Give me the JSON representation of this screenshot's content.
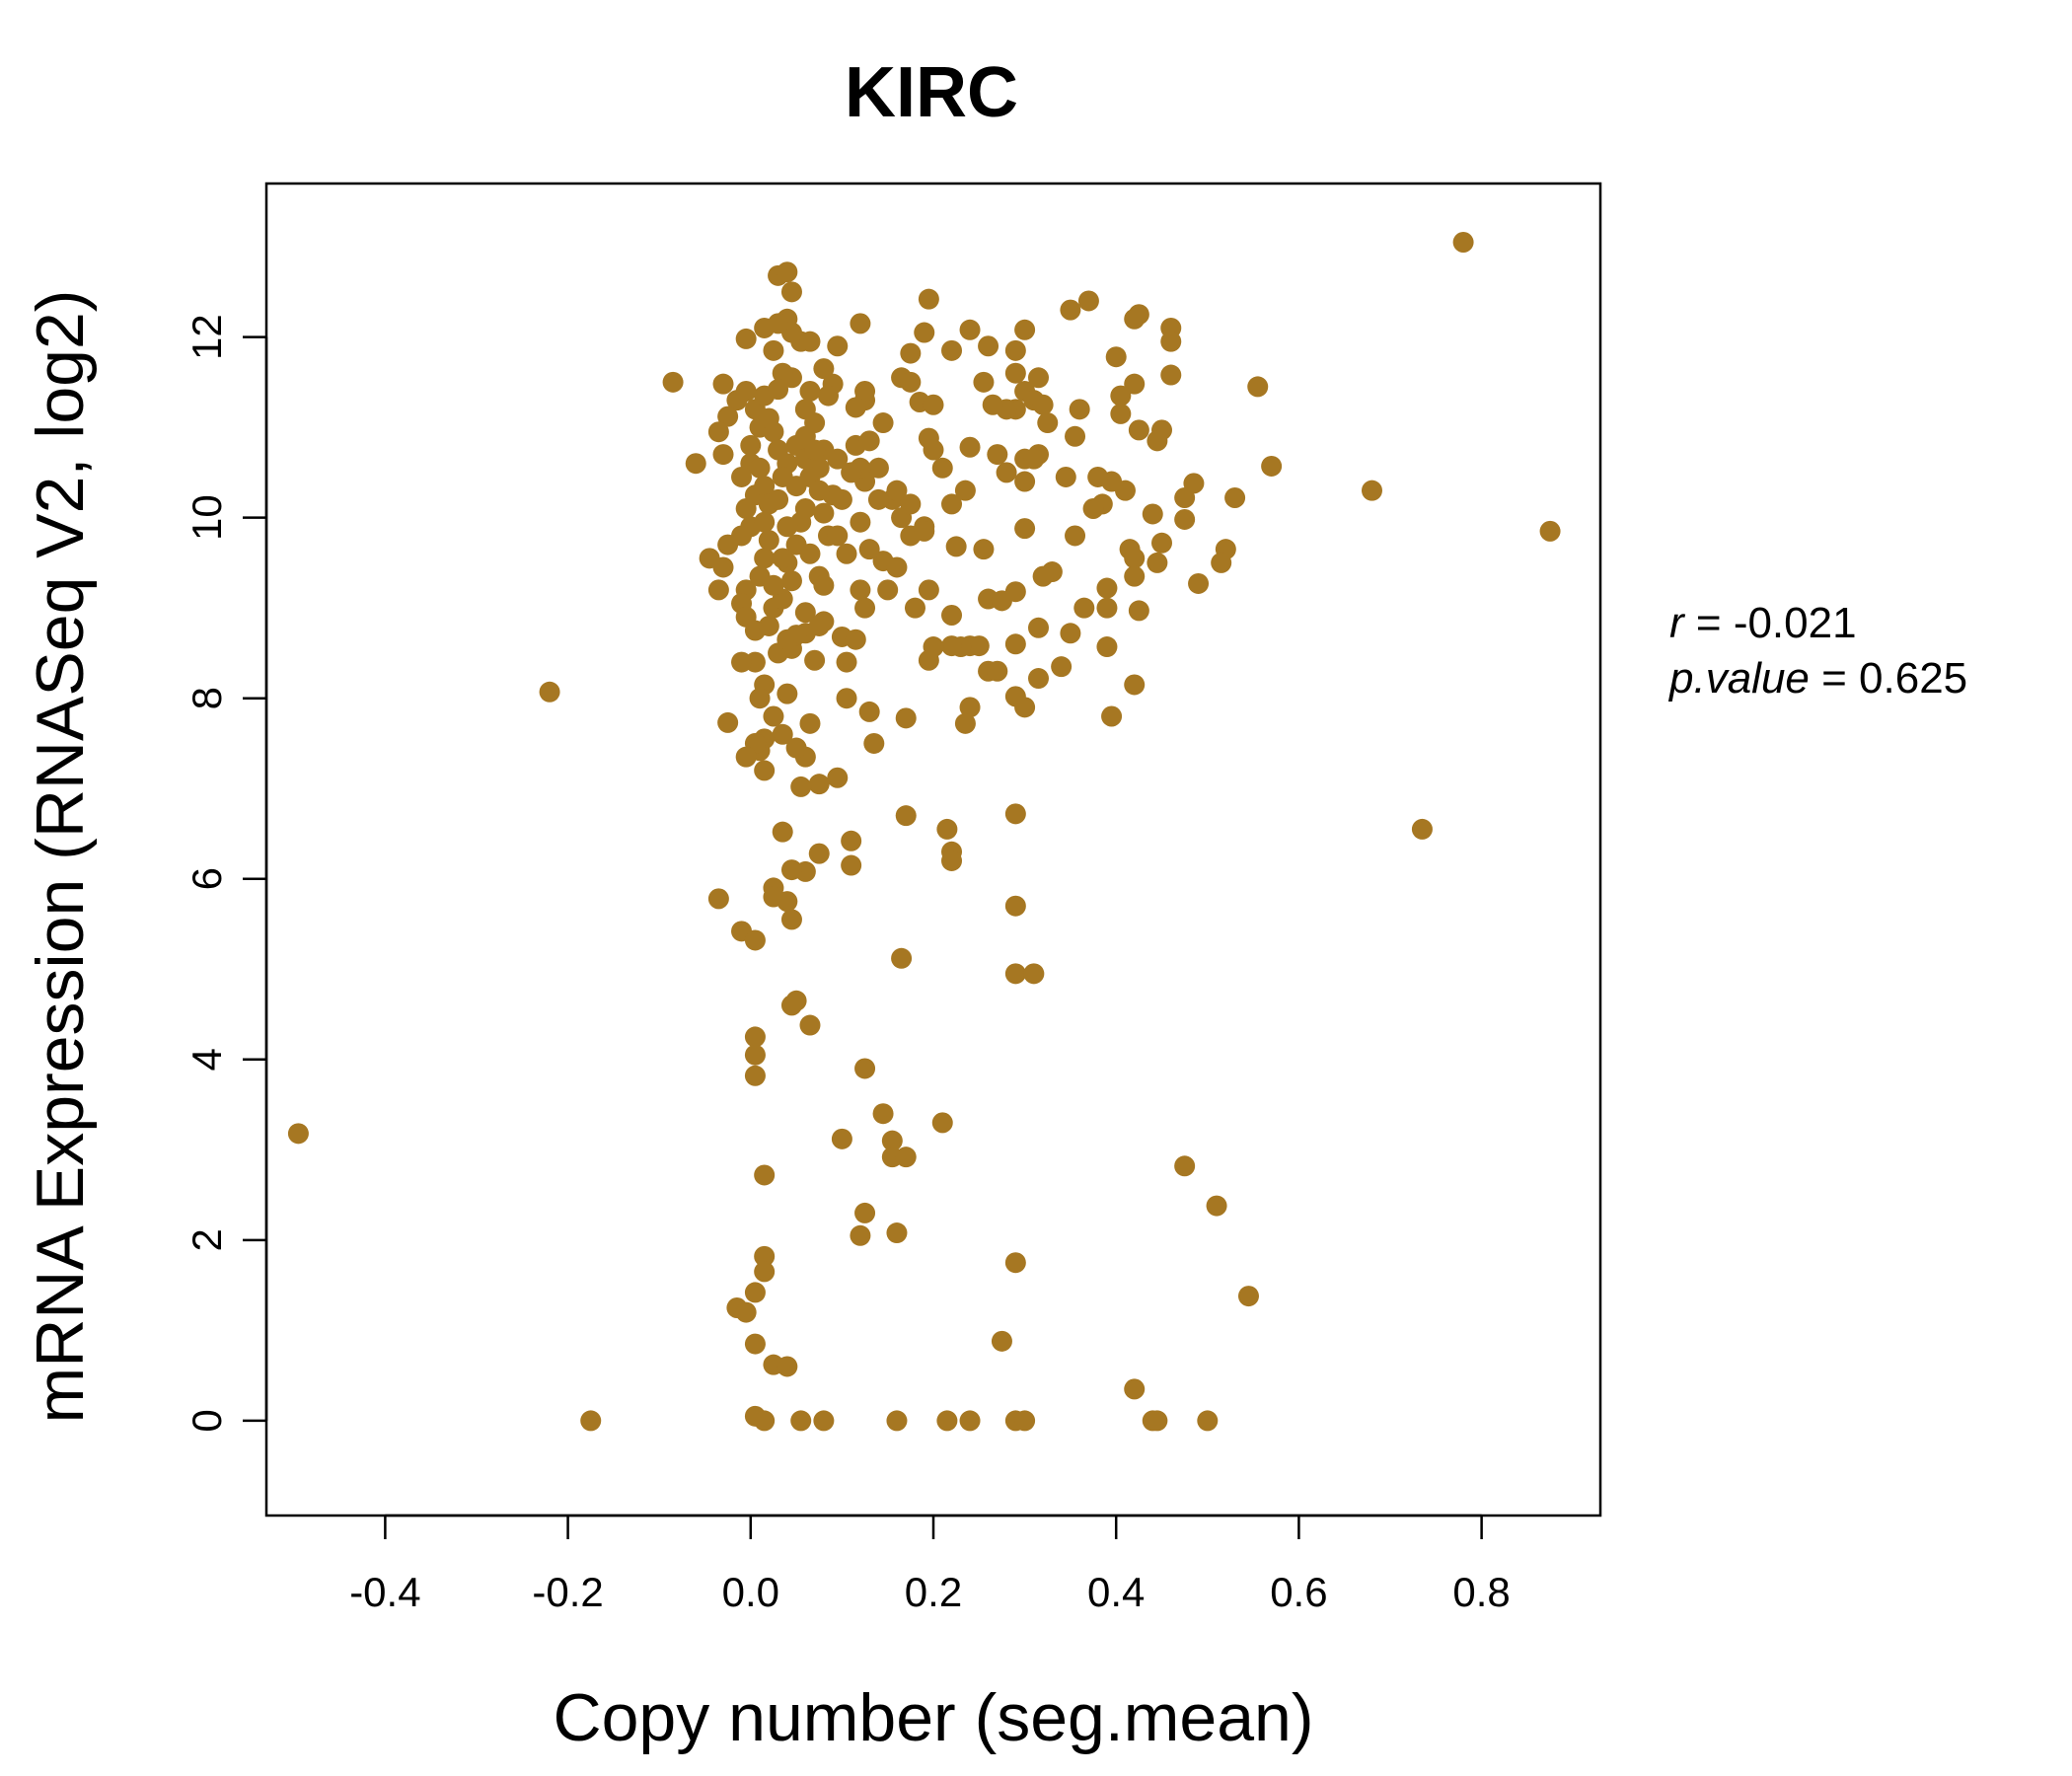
{
  "chart_data": {
    "type": "scatter",
    "title": "KIRC",
    "xlabel": "Copy number (seg.mean)",
    "ylabel": "mRNA Expression (RNASeq V2, log2)",
    "xlim": [
      -0.53,
      0.93
    ],
    "ylim": [
      -1.05,
      13.7
    ],
    "x_ticks": [
      -0.4,
      -0.2,
      0.0,
      0.2,
      0.4,
      0.6,
      0.8
    ],
    "x_tick_labels": [
      "-0.4",
      "-0.2",
      "0.0",
      "0.2",
      "0.4",
      "0.6",
      "0.8"
    ],
    "y_ticks": [
      0,
      2,
      4,
      6,
      8,
      10,
      12
    ],
    "y_tick_labels": [
      "0",
      "2",
      "4",
      "6",
      "8",
      "10",
      "12"
    ],
    "grid": false,
    "point_color": "#a67722",
    "stats": {
      "r_label": "r",
      "r_value": "-0.021",
      "p_label": "p.value",
      "p_value": "0.625"
    },
    "points": [
      [
        0.78,
        13.05
      ],
      [
        0.875,
        9.85
      ],
      [
        0.68,
        10.3
      ],
      [
        0.735,
        6.55
      ],
      [
        -0.495,
        3.18
      ],
      [
        -0.22,
        8.07
      ],
      [
        -0.175,
        0.0
      ],
      [
        0.555,
        11.45
      ],
      [
        0.57,
        10.57
      ],
      [
        0.53,
        10.22
      ],
      [
        0.52,
        9.65
      ],
      [
        0.515,
        9.5
      ],
      [
        0.49,
        9.27
      ],
      [
        0.485,
        10.38
      ],
      [
        0.475,
        10.22
      ],
      [
        0.475,
        9.98
      ],
      [
        0.45,
        9.72
      ],
      [
        0.445,
        9.5
      ],
      [
        0.45,
        10.97
      ],
      [
        0.445,
        10.85
      ],
      [
        0.44,
        10.04
      ],
      [
        0.46,
        12.1
      ],
      [
        0.46,
        11.95
      ],
      [
        0.46,
        11.58
      ],
      [
        0.42,
        12.2
      ],
      [
        0.425,
        12.25
      ],
      [
        0.42,
        11.48
      ],
      [
        0.425,
        10.97
      ],
      [
        0.4,
        11.78
      ],
      [
        0.405,
        11.35
      ],
      [
        0.405,
        11.15
      ],
      [
        0.41,
        10.3
      ],
      [
        0.415,
        9.65
      ],
      [
        0.42,
        9.55
      ],
      [
        0.42,
        9.35
      ],
      [
        0.425,
        8.97
      ],
      [
        0.42,
        8.15
      ],
      [
        0.395,
        7.8
      ],
      [
        0.39,
        8.57
      ],
      [
        0.39,
        9.0
      ],
      [
        0.39,
        9.22
      ],
      [
        0.385,
        10.15
      ],
      [
        0.395,
        10.4
      ],
      [
        0.38,
        10.45
      ],
      [
        0.375,
        10.1
      ],
      [
        0.37,
        12.4
      ],
      [
        0.35,
        12.3
      ],
      [
        0.36,
        11.2
      ],
      [
        0.355,
        10.9
      ],
      [
        0.345,
        10.45
      ],
      [
        0.355,
        9.8
      ],
      [
        0.365,
        9.0
      ],
      [
        0.35,
        8.72
      ],
      [
        0.34,
        8.35
      ],
      [
        0.33,
        9.4
      ],
      [
        0.32,
        9.35
      ],
      [
        0.315,
        8.78
      ],
      [
        0.315,
        8.22
      ],
      [
        0.3,
        7.9
      ],
      [
        0.3,
        12.08
      ],
      [
        0.29,
        11.85
      ],
      [
        0.29,
        11.6
      ],
      [
        0.3,
        11.4
      ],
      [
        0.31,
        11.3
      ],
      [
        0.315,
        11.55
      ],
      [
        0.32,
        11.25
      ],
      [
        0.325,
        11.05
      ],
      [
        0.315,
        10.7
      ],
      [
        0.3,
        10.65
      ],
      [
        0.29,
        11.2
      ],
      [
        0.28,
        11.2
      ],
      [
        0.265,
        11.25
      ],
      [
        0.255,
        11.5
      ],
      [
        0.26,
        11.9
      ],
      [
        0.24,
        12.08
      ],
      [
        0.22,
        11.85
      ],
      [
        0.195,
        12.42
      ],
      [
        0.19,
        12.05
      ],
      [
        0.175,
        11.82
      ],
      [
        0.165,
        11.55
      ],
      [
        0.175,
        11.5
      ],
      [
        0.185,
        11.28
      ],
      [
        0.2,
        11.25
      ],
      [
        0.195,
        10.88
      ],
      [
        0.2,
        10.75
      ],
      [
        0.21,
        10.55
      ],
      [
        0.24,
        10.78
      ],
      [
        0.27,
        10.7
      ],
      [
        0.31,
        10.65
      ],
      [
        0.3,
        10.4
      ],
      [
        0.28,
        10.5
      ],
      [
        0.3,
        9.88
      ],
      [
        0.235,
        10.3
      ],
      [
        0.22,
        10.15
      ],
      [
        0.255,
        9.65
      ],
      [
        0.225,
        9.68
      ],
      [
        0.19,
        9.9
      ],
      [
        0.195,
        9.2
      ],
      [
        0.18,
        9.0
      ],
      [
        0.22,
        8.92
      ],
      [
        0.26,
        9.1
      ],
      [
        0.275,
        9.08
      ],
      [
        0.29,
        9.18
      ],
      [
        0.29,
        8.6
      ],
      [
        0.26,
        8.3
      ],
      [
        0.27,
        8.3
      ],
      [
        0.25,
        8.58
      ],
      [
        0.24,
        8.58
      ],
      [
        0.23,
        8.57
      ],
      [
        0.22,
        8.58
      ],
      [
        0.2,
        8.57
      ],
      [
        0.195,
        8.42
      ],
      [
        0.29,
        8.02
      ],
      [
        0.24,
        7.9
      ],
      [
        0.235,
        7.72
      ],
      [
        0.17,
        7.78
      ],
      [
        0.13,
        7.85
      ],
      [
        0.135,
        7.5
      ],
      [
        0.105,
        8.0
      ],
      [
        0.095,
        7.12
      ],
      [
        0.075,
        7.05
      ],
      [
        0.055,
        7.02
      ],
      [
        0.06,
        7.35
      ],
      [
        0.05,
        7.45
      ],
      [
        0.035,
        7.6
      ],
      [
        0.025,
        7.8
      ],
      [
        0.015,
        7.55
      ],
      [
        0.01,
        7.42
      ],
      [
        0.005,
        7.5
      ],
      [
        -0.005,
        7.35
      ],
      [
        0.015,
        7.2
      ],
      [
        -0.025,
        7.73
      ],
      [
        0.065,
        7.72
      ],
      [
        0.04,
        8.05
      ],
      [
        0.015,
        8.15
      ],
      [
        0.01,
        8.0
      ],
      [
        0.005,
        8.4
      ],
      [
        -0.01,
        8.4
      ],
      [
        0.03,
        8.5
      ],
      [
        0.045,
        8.55
      ],
      [
        0.06,
        8.72
      ],
      [
        0.07,
        8.42
      ],
      [
        0.08,
        8.85
      ],
      [
        0.1,
        8.68
      ],
      [
        0.115,
        8.65
      ],
      [
        0.105,
        8.4
      ],
      [
        0.125,
        9.0
      ],
      [
        0.12,
        9.2
      ],
      [
        0.15,
        9.2
      ],
      [
        0.145,
        9.52
      ],
      [
        0.13,
        9.65
      ],
      [
        0.16,
        9.45
      ],
      [
        0.175,
        9.8
      ],
      [
        0.19,
        9.85
      ],
      [
        0.165,
        10.0
      ],
      [
        0.155,
        10.2
      ],
      [
        0.16,
        10.3
      ],
      [
        0.175,
        10.15
      ],
      [
        0.14,
        10.55
      ],
      [
        0.125,
        10.4
      ],
      [
        0.12,
        10.55
      ],
      [
        0.11,
        10.5
      ],
      [
        0.095,
        10.65
      ],
      [
        0.115,
        10.8
      ],
      [
        0.13,
        10.85
      ],
      [
        0.145,
        11.05
      ],
      [
        0.125,
        11.3
      ],
      [
        0.125,
        11.4
      ],
      [
        0.115,
        11.22
      ],
      [
        0.1,
        10.2
      ],
      [
        0.09,
        10.25
      ],
      [
        0.075,
        10.55
      ],
      [
        0.08,
        10.75
      ],
      [
        0.09,
        11.48
      ],
      [
        0.08,
        11.65
      ],
      [
        0.065,
        11.4
      ],
      [
        0.06,
        11.2
      ],
      [
        0.085,
        11.35
      ],
      [
        0.07,
        11.05
      ],
      [
        0.06,
        10.9
      ],
      [
        0.05,
        10.8
      ],
      [
        0.045,
        11.55
      ],
      [
        0.055,
        11.95
      ],
      [
        0.065,
        11.95
      ],
      [
        0.045,
        12.05
      ],
      [
        0.04,
        12.2
      ],
      [
        0.03,
        12.15
      ],
      [
        0.015,
        12.1
      ],
      [
        0.025,
        11.85
      ],
      [
        0.035,
        11.6
      ],
      [
        0.045,
        12.5
      ],
      [
        0.03,
        12.68
      ],
      [
        0.04,
        12.72
      ],
      [
        0.12,
        12.15
      ],
      [
        0.095,
        11.9
      ],
      [
        -0.005,
        11.98
      ],
      [
        -0.085,
        11.5
      ],
      [
        -0.03,
        11.48
      ],
      [
        -0.015,
        11.3
      ],
      [
        -0.025,
        11.12
      ],
      [
        -0.035,
        10.95
      ],
      [
        -0.03,
        10.7
      ],
      [
        -0.06,
        10.6
      ],
      [
        0.0,
        10.8
      ],
      [
        -0.005,
        11.4
      ],
      [
        0.005,
        11.2
      ],
      [
        0.01,
        11.0
      ],
      [
        0.0,
        10.6
      ],
      [
        -0.01,
        10.45
      ],
      [
        0.005,
        10.25
      ],
      [
        -0.005,
        10.1
      ],
      [
        0.0,
        9.9
      ],
      [
        -0.01,
        9.8
      ],
      [
        -0.025,
        9.7
      ],
      [
        -0.03,
        9.45
      ],
      [
        -0.045,
        9.55
      ],
      [
        -0.035,
        9.2
      ],
      [
        -0.005,
        9.2
      ],
      [
        -0.01,
        9.05
      ],
      [
        -0.005,
        8.9
      ],
      [
        0.005,
        8.75
      ],
      [
        0.02,
        8.8
      ],
      [
        0.025,
        9.0
      ],
      [
        0.035,
        9.1
      ],
      [
        0.045,
        9.3
      ],
      [
        0.04,
        9.5
      ],
      [
        0.05,
        9.7
      ],
      [
        0.055,
        9.95
      ],
      [
        0.06,
        10.1
      ],
      [
        0.05,
        10.35
      ],
      [
        0.04,
        10.6
      ],
      [
        0.03,
        10.75
      ],
      [
        0.025,
        10.95
      ],
      [
        0.02,
        11.1
      ],
      [
        0.015,
        11.35
      ],
      [
        0.03,
        11.42
      ],
      [
        0.01,
        10.55
      ],
      [
        0.015,
        10.35
      ],
      [
        0.02,
        10.15
      ],
      [
        0.015,
        9.95
      ],
      [
        0.02,
        9.75
      ],
      [
        0.015,
        9.55
      ],
      [
        0.01,
        9.35
      ],
      [
        0.025,
        9.25
      ],
      [
        0.035,
        9.55
      ],
      [
        0.04,
        9.9
      ],
      [
        0.03,
        10.2
      ],
      [
        0.035,
        10.45
      ],
      [
        0.065,
        10.45
      ],
      [
        0.075,
        10.3
      ],
      [
        0.08,
        10.05
      ],
      [
        0.085,
        9.8
      ],
      [
        0.075,
        9.35
      ],
      [
        0.08,
        9.25
      ],
      [
        0.065,
        9.6
      ],
      [
        0.06,
        8.95
      ],
      [
        0.05,
        8.7
      ],
      [
        0.04,
        8.65
      ],
      [
        0.075,
        8.8
      ],
      [
        0.095,
        9.8
      ],
      [
        0.105,
        9.6
      ],
      [
        0.12,
        9.95
      ],
      [
        0.14,
        10.2
      ],
      [
        0.06,
        10.65
      ],
      [
        0.07,
        10.75
      ],
      [
        0.17,
        6.7
      ],
      [
        0.215,
        6.55
      ],
      [
        0.22,
        6.3
      ],
      [
        0.22,
        6.2
      ],
      [
        0.29,
        6.72
      ],
      [
        0.11,
        6.42
      ],
      [
        0.11,
        6.15
      ],
      [
        0.075,
        6.28
      ],
      [
        0.06,
        6.08
      ],
      [
        0.045,
        6.1
      ],
      [
        0.035,
        6.52
      ],
      [
        0.025,
        5.9
      ],
      [
        0.025,
        5.8
      ],
      [
        0.04,
        5.75
      ],
      [
        0.045,
        5.55
      ],
      [
        -0.035,
        5.78
      ],
      [
        -0.01,
        5.42
      ],
      [
        0.005,
        5.32
      ],
      [
        0.165,
        5.12
      ],
      [
        0.29,
        5.7
      ],
      [
        0.29,
        4.95
      ],
      [
        0.31,
        4.95
      ],
      [
        0.05,
        4.65
      ],
      [
        0.045,
        4.6
      ],
      [
        0.065,
        4.38
      ],
      [
        0.005,
        4.25
      ],
      [
        0.005,
        4.05
      ],
      [
        0.005,
        3.82
      ],
      [
        0.125,
        3.9
      ],
      [
        0.145,
        3.4
      ],
      [
        0.21,
        3.3
      ],
      [
        0.155,
        3.1
      ],
      [
        0.1,
        3.12
      ],
      [
        0.155,
        2.92
      ],
      [
        0.17,
        2.92
      ],
      [
        0.015,
        2.72
      ],
      [
        0.475,
        2.82
      ],
      [
        0.51,
        2.38
      ],
      [
        0.125,
        2.3
      ],
      [
        0.12,
        2.05
      ],
      [
        0.16,
        2.08
      ],
      [
        0.015,
        1.82
      ],
      [
        0.015,
        1.65
      ],
      [
        0.29,
        1.75
      ],
      [
        0.005,
        1.42
      ],
      [
        -0.015,
        1.25
      ],
      [
        -0.005,
        1.2
      ],
      [
        0.545,
        1.38
      ],
      [
        0.005,
        0.85
      ],
      [
        0.275,
        0.88
      ],
      [
        0.025,
        0.62
      ],
      [
        0.04,
        0.6
      ],
      [
        0.42,
        0.35
      ],
      [
        0.005,
        0.05
      ],
      [
        0.015,
        0.0
      ],
      [
        0.055,
        0.0
      ],
      [
        0.08,
        0.0
      ],
      [
        0.16,
        0.0
      ],
      [
        0.215,
        0.0
      ],
      [
        0.24,
        0.0
      ],
      [
        0.29,
        0.0
      ],
      [
        0.3,
        0.0
      ],
      [
        0.44,
        0.0
      ],
      [
        0.445,
        0.0
      ],
      [
        0.5,
        0.0
      ]
    ]
  }
}
